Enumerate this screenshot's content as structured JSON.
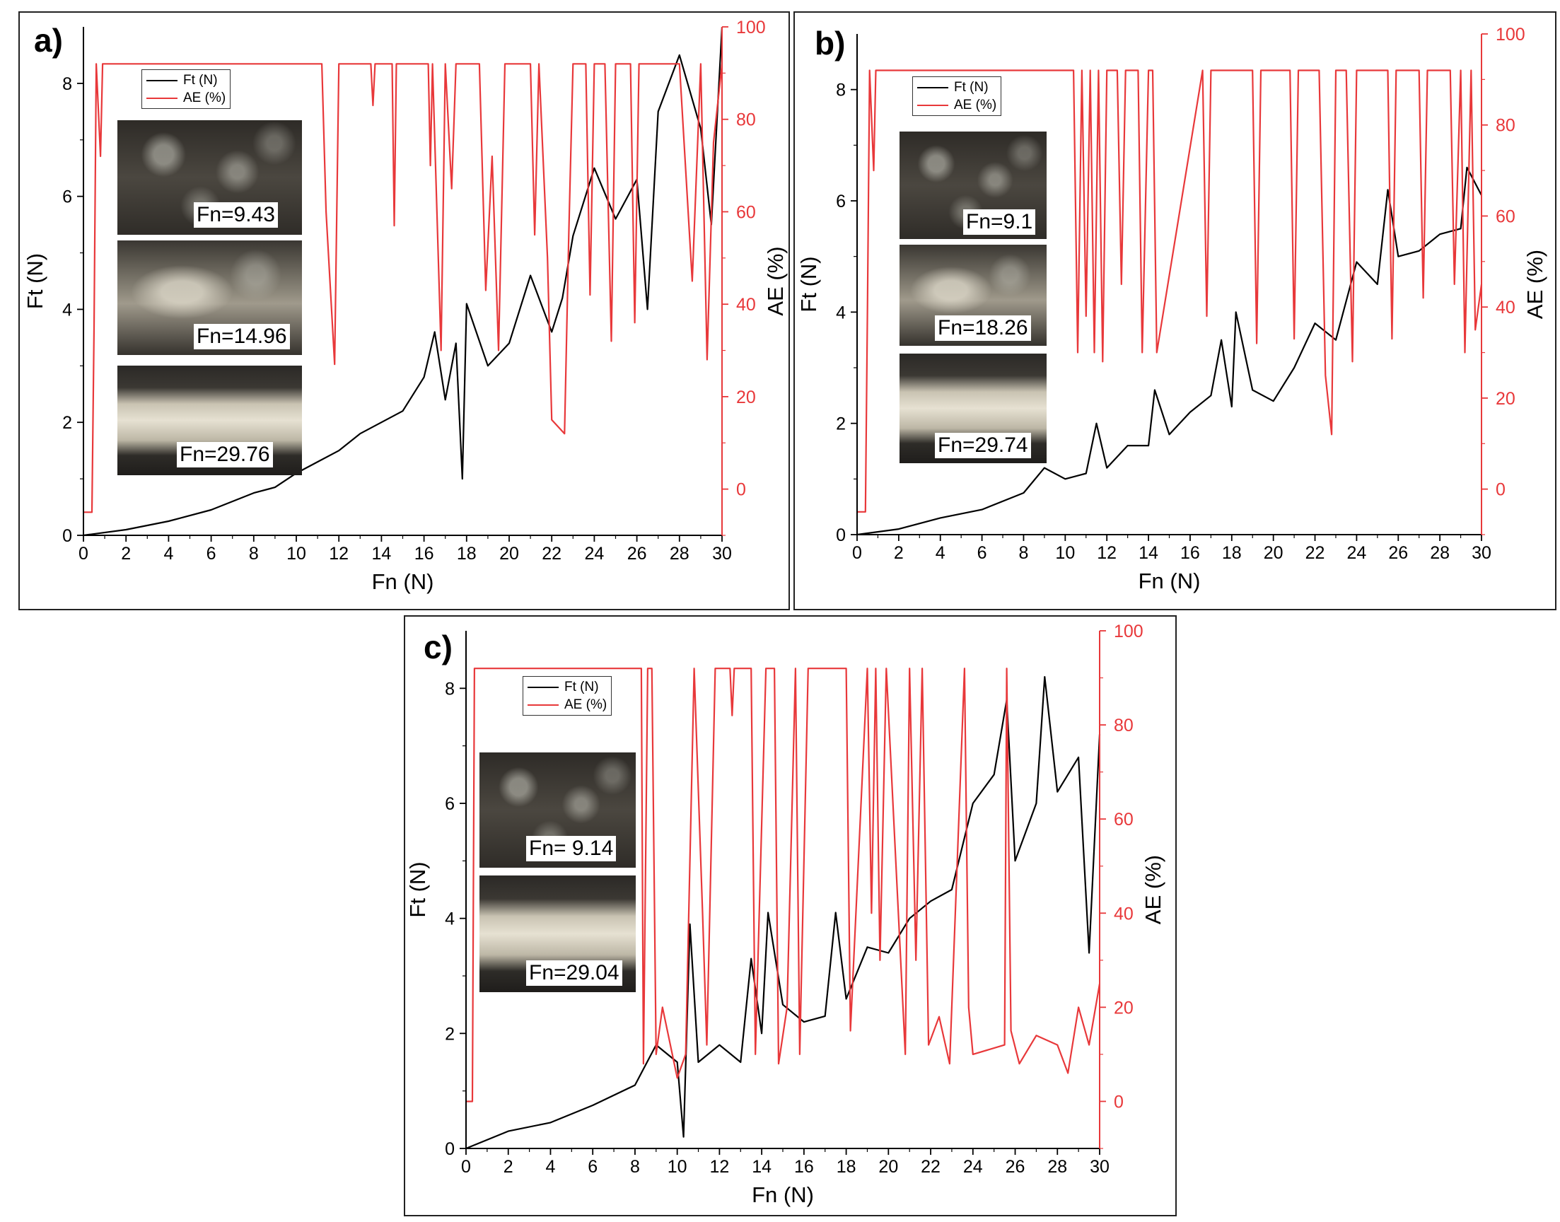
{
  "colors": {
    "ft": "#000000",
    "ae": "#e8383a",
    "frame": "#222222"
  },
  "legend": {
    "ft_label": "Ft (N)",
    "ae_label": "AE (%)"
  },
  "panels": [
    {
      "label": "a)",
      "micrographs": [
        {
          "label": "Fn=9.43"
        },
        {
          "label": "Fn=14.96"
        },
        {
          "label": "Fn=29.76"
        }
      ]
    },
    {
      "label": "b)",
      "micrographs": [
        {
          "label": "Fn=9.1"
        },
        {
          "label": "Fn=18.26"
        },
        {
          "label": "Fn=29.74"
        }
      ]
    },
    {
      "label": "c)",
      "micrographs": [
        {
          "label": "Fn= 9.14"
        },
        {
          "label": "Fn=29.04"
        }
      ]
    }
  ],
  "chart_data": [
    {
      "type": "line",
      "title": "a)",
      "xlabel": "Fn (N)",
      "ylabel": "Ft (N)",
      "y2label": "AE (%)",
      "xlim": [
        0,
        30
      ],
      "ylim": [
        0,
        9
      ],
      "y2lim": [
        -10,
        100
      ],
      "xticks": [
        0,
        2,
        4,
        6,
        8,
        10,
        12,
        14,
        16,
        18,
        20,
        22,
        24,
        26,
        28,
        30
      ],
      "yticks": [
        0,
        2,
        4,
        6,
        8
      ],
      "y2ticks": [
        0,
        20,
        40,
        60,
        80,
        100
      ],
      "series": [
        {
          "name": "Ft (N)",
          "axis": "left",
          "x": [
            0,
            2,
            4,
            6,
            8,
            9,
            10,
            11,
            12,
            13,
            14,
            15,
            16,
            16.5,
            17,
            17.5,
            17.8,
            18,
            19,
            20,
            21,
            22,
            22.5,
            23,
            24,
            25,
            26,
            26.5,
            27,
            28,
            29,
            29.5,
            30
          ],
          "y": [
            0,
            0.1,
            0.25,
            0.45,
            0.75,
            0.85,
            1.1,
            1.3,
            1.5,
            1.8,
            2.0,
            2.2,
            2.8,
            3.6,
            2.4,
            3.4,
            1.0,
            4.1,
            3.0,
            3.4,
            4.6,
            3.6,
            4.2,
            5.3,
            6.5,
            5.6,
            6.3,
            4.0,
            7.5,
            8.5,
            7.2,
            5.5,
            9.0
          ]
        },
        {
          "name": "AE (%)",
          "axis": "right",
          "x": [
            0,
            0.4,
            0.5,
            0.6,
            0.8,
            0.9,
            1.0,
            11.2,
            11.4,
            11.8,
            12.0,
            13.5,
            13.6,
            13.7,
            14.5,
            14.6,
            14.7,
            16.2,
            16.3,
            16.4,
            16.8,
            17.0,
            17.3,
            17.5,
            18.6,
            18.9,
            19.2,
            19.5,
            19.8,
            21.0,
            21.2,
            21.4,
            21.8,
            22.0,
            22.6,
            22.8,
            23.0,
            23.6,
            23.8,
            24.0,
            24.5,
            24.8,
            25.0,
            25.7,
            25.9,
            26.1,
            28.0,
            28.6,
            29.0,
            29.3,
            29.6,
            30
          ],
          "y": [
            -5,
            -5,
            35,
            92,
            72,
            92,
            92,
            92,
            60,
            27,
            92,
            92,
            83,
            92,
            92,
            57,
            92,
            92,
            70,
            92,
            30,
            92,
            65,
            92,
            92,
            43,
            72,
            30,
            92,
            92,
            55,
            92,
            50,
            15,
            12,
            55,
            92,
            92,
            42,
            92,
            92,
            32,
            92,
            92,
            36,
            92,
            92,
            45,
            92,
            28,
            75,
            92
          ]
        }
      ]
    },
    {
      "type": "line",
      "title": "b)",
      "xlabel": "Fn (N)",
      "ylabel": "Ft (N)",
      "y2label": "AE (%)",
      "xlim": [
        0,
        30
      ],
      "ylim": [
        0,
        9
      ],
      "y2lim": [
        -10,
        100
      ],
      "xticks": [
        0,
        2,
        4,
        6,
        8,
        10,
        12,
        14,
        16,
        18,
        20,
        22,
        24,
        26,
        28,
        30
      ],
      "yticks": [
        0,
        2,
        4,
        6,
        8
      ],
      "y2ticks": [
        0,
        20,
        40,
        60,
        80,
        100
      ],
      "series": [
        {
          "name": "Ft (N)",
          "axis": "left",
          "x": [
            0,
            2,
            4,
            6,
            8,
            9,
            10,
            11,
            11.5,
            12,
            13,
            14,
            14.3,
            15,
            16,
            17,
            17.5,
            18,
            18.2,
            19,
            20,
            21,
            22,
            23,
            24,
            25,
            25.5,
            26,
            27,
            28,
            29,
            29.3,
            30
          ],
          "y": [
            0,
            0.1,
            0.3,
            0.45,
            0.75,
            1.2,
            1.0,
            1.1,
            2.0,
            1.2,
            1.6,
            1.6,
            2.6,
            1.8,
            2.2,
            2.5,
            3.5,
            2.3,
            4.0,
            2.6,
            2.4,
            3.0,
            3.8,
            3.5,
            4.9,
            4.5,
            6.2,
            5.0,
            5.1,
            5.4,
            5.5,
            6.6,
            6.1
          ]
        },
        {
          "name": "AE (%)",
          "axis": "right",
          "x": [
            0,
            0.4,
            0.5,
            0.6,
            0.8,
            0.9,
            10.4,
            10.6,
            10.8,
            11.0,
            11.2,
            11.4,
            11.6,
            11.8,
            12.0,
            12.5,
            12.7,
            12.9,
            13.5,
            13.7,
            14.0,
            14.2,
            14.4,
            16.6,
            16.8,
            17.0,
            17.2,
            19.0,
            19.2,
            19.4,
            20.8,
            21.0,
            21.2,
            22.2,
            22.5,
            22.8,
            23.0,
            23.5,
            23.8,
            24.0,
            25.5,
            25.7,
            25.9,
            27.0,
            27.2,
            27.4,
            28.5,
            28.7,
            29.0,
            29.2,
            29.5,
            29.7,
            30
          ],
          "y": [
            -5,
            -5,
            40,
            92,
            70,
            92,
            92,
            30,
            92,
            38,
            92,
            30,
            92,
            28,
            92,
            92,
            45,
            92,
            92,
            30,
            92,
            92,
            30,
            92,
            38,
            92,
            92,
            92,
            32,
            92,
            92,
            33,
            92,
            92,
            25,
            12,
            92,
            92,
            28,
            92,
            92,
            33,
            92,
            92,
            42,
            92,
            92,
            45,
            92,
            30,
            92,
            35,
            45
          ]
        }
      ]
    },
    {
      "type": "line",
      "title": "c)",
      "xlabel": "Fn (N)",
      "ylabel": "Ft (N)",
      "y2label": "AE (%)",
      "xlim": [
        0,
        30
      ],
      "ylim": [
        0,
        9
      ],
      "y2lim": [
        -10,
        100
      ],
      "xticks": [
        0,
        2,
        4,
        6,
        8,
        10,
        12,
        14,
        16,
        18,
        20,
        22,
        24,
        26,
        28,
        30
      ],
      "yticks": [
        0,
        2,
        4,
        6,
        8
      ],
      "y2ticks": [
        0,
        20,
        40,
        60,
        80,
        100
      ],
      "series": [
        {
          "name": "Ft (N)",
          "axis": "left",
          "x": [
            0,
            2,
            4,
            6,
            8,
            9,
            10,
            10.3,
            10.6,
            11,
            12,
            13,
            13.5,
            14,
            14.3,
            15,
            16,
            17,
            17.5,
            18,
            19,
            20,
            21,
            22,
            23,
            24,
            25,
            25.6,
            26,
            27,
            27.4,
            28,
            29,
            29.5,
            30
          ],
          "y": [
            0,
            0.3,
            0.45,
            0.75,
            1.1,
            1.8,
            1.5,
            0.2,
            3.9,
            1.5,
            1.8,
            1.5,
            3.3,
            2.0,
            4.1,
            2.5,
            2.2,
            2.3,
            4.1,
            2.6,
            3.5,
            3.4,
            4.0,
            4.3,
            4.5,
            6.0,
            6.5,
            7.8,
            5.0,
            6.0,
            8.2,
            6.2,
            6.8,
            3.4,
            7.2
          ]
        },
        {
          "name": "AE (%)",
          "axis": "right",
          "x": [
            0,
            0.3,
            0.4,
            8.3,
            8.4,
            8.6,
            8.8,
            9.0,
            9.3,
            10.0,
            10.4,
            10.8,
            11.2,
            11.4,
            11.8,
            12.0,
            12.5,
            12.6,
            12.7,
            13.5,
            13.7,
            14.2,
            14.6,
            14.8,
            15.2,
            15.6,
            15.8,
            16.2,
            18.0,
            18.2,
            19.0,
            19.2,
            19.4,
            19.6,
            19.9,
            20.8,
            21.0,
            21.3,
            21.6,
            21.9,
            22.4,
            22.9,
            23.6,
            23.8,
            24.0,
            25.5,
            25.6,
            25.8,
            26.2,
            27.0,
            28.0,
            28.5,
            29.0,
            29.5,
            30
          ],
          "y": [
            0,
            0,
            92,
            92,
            8,
            92,
            92,
            10,
            20,
            5,
            10,
            92,
            40,
            12,
            92,
            92,
            92,
            82,
            92,
            92,
            10,
            92,
            92,
            8,
            20,
            92,
            10,
            92,
            92,
            15,
            92,
            40,
            92,
            30,
            92,
            10,
            92,
            30,
            92,
            12,
            18,
            8,
            92,
            20,
            10,
            12,
            92,
            15,
            8,
            14,
            12,
            6,
            20,
            12,
            25
          ]
        }
      ]
    }
  ]
}
